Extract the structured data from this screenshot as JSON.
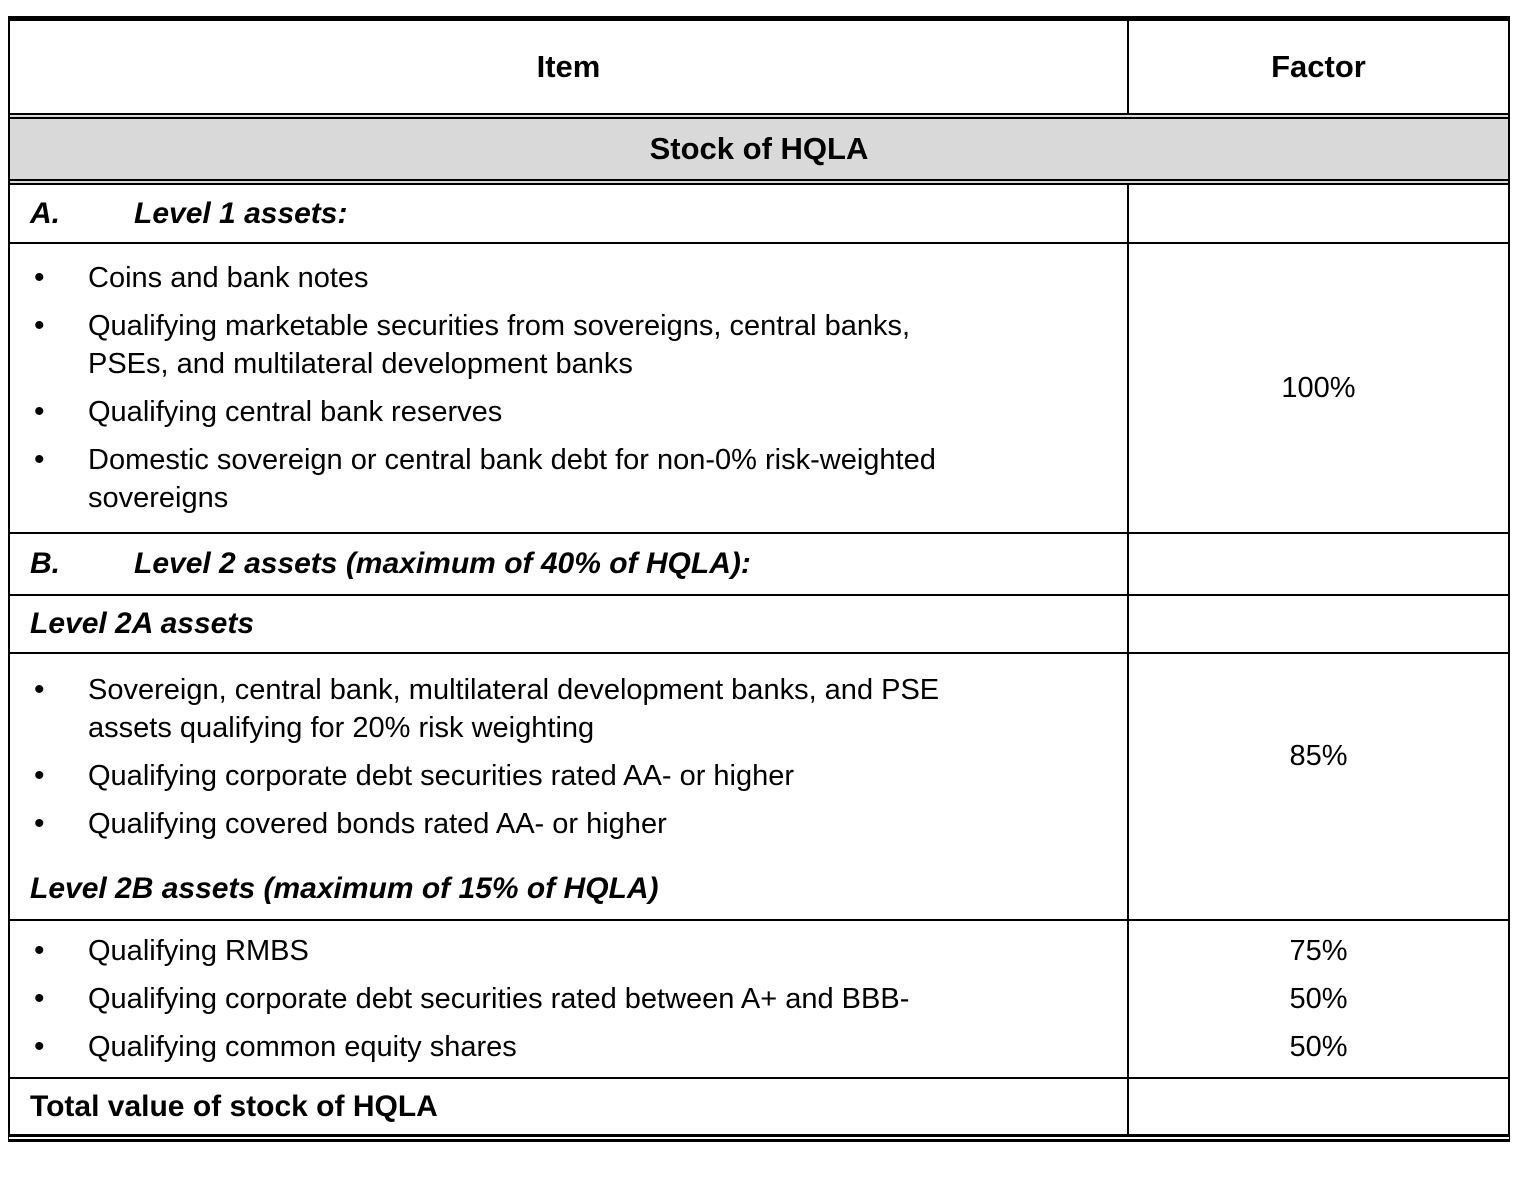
{
  "colors": {
    "band_background": "#d9d9d9",
    "text": "#000000",
    "border": "#000000"
  },
  "header": {
    "item_label": "Item",
    "factor_label": "Factor"
  },
  "band": {
    "title": "Stock of HQLA"
  },
  "sections": {
    "a": {
      "prefix": "A.",
      "title": "Level 1 assets:"
    },
    "level1": {
      "items": [
        "Coins and bank notes",
        "Qualifying marketable securities from sovereigns, central banks,\nPSEs, and multilateral development banks",
        "Qualifying central bank reserves",
        "Domestic sovereign or central bank debt for non-0% risk-weighted\nsovereigns"
      ],
      "factor": "100%"
    },
    "b": {
      "prefix": "B.",
      "title": "Level 2 assets (maximum of 40% of HQLA):"
    },
    "level2a_heading": {
      "title": "Level 2A assets"
    },
    "level2a": {
      "items": [
        "Sovereign, central bank, multilateral development banks, and PSE\nassets qualifying for 20% risk weighting",
        "Qualifying corporate debt securities rated AA- or higher",
        "Qualifying covered bonds rated AA- or higher"
      ],
      "factor": "85%"
    },
    "level2b_heading": {
      "title": "Level 2B assets (maximum of 15% of HQLA)"
    },
    "level2b": {
      "items": [
        "Qualifying RMBS",
        "Qualifying corporate debt securities rated between A+ and BBB-",
        "Qualifying common equity shares"
      ],
      "factors": [
        "75%",
        "50%",
        "50%"
      ]
    },
    "total": {
      "title": "Total value of stock of HQLA"
    }
  }
}
